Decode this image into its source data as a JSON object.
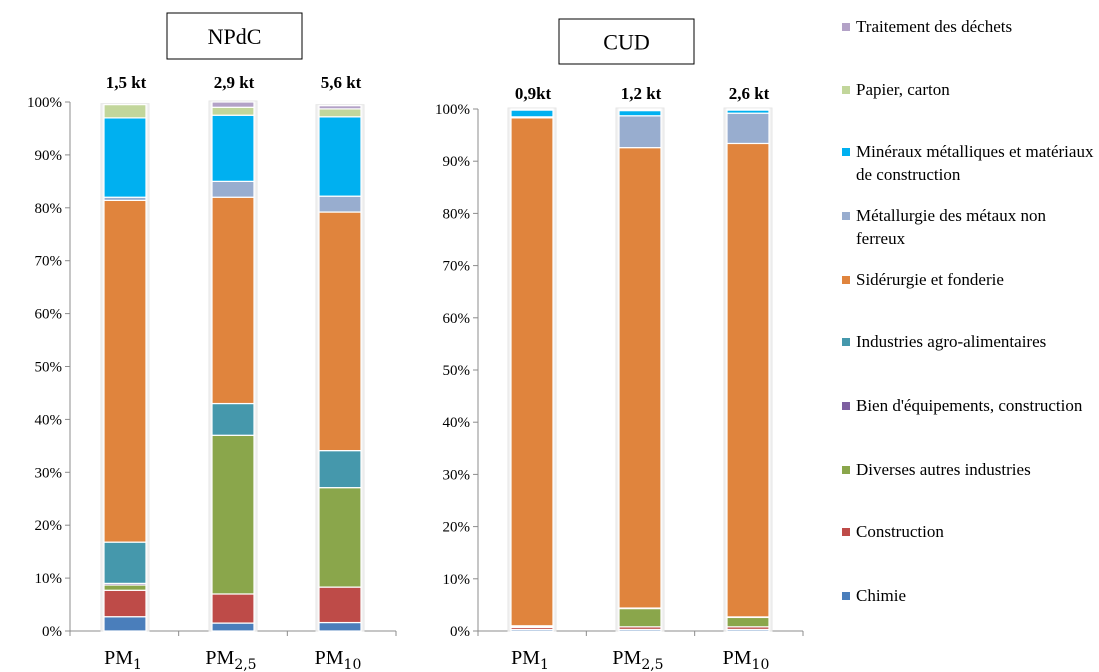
{
  "chart_data": [
    {
      "type": "bar",
      "stacked": "percent",
      "title": "NPdC",
      "categories": [
        "PM1",
        "PM2,5",
        "PM10"
      ],
      "category_labels": [
        {
          "base": "PM",
          "sub": "1"
        },
        {
          "base": "PM",
          "sub": "2,5"
        },
        {
          "base": "PM",
          "sub": "10"
        }
      ],
      "totals": [
        "1,5 kt",
        "2,9 kt",
        "5,6 kt"
      ],
      "ylim": [
        0,
        100
      ],
      "yticks": [
        "0%",
        "10%",
        "20%",
        "30%",
        "40%",
        "50%",
        "60%",
        "70%",
        "80%",
        "90%",
        "100%"
      ],
      "series": [
        {
          "name": "Chimie",
          "values": [
            2.7,
            1.5,
            1.6
          ]
        },
        {
          "name": "Construction",
          "values": [
            5.0,
            5.5,
            6.7
          ]
        },
        {
          "name": "Diverses autres industries",
          "values": [
            1.0,
            30.0,
            18.8
          ]
        },
        {
          "name": "Bien d'équipements, construction",
          "values": [
            0.3,
            0.0,
            0.0
          ]
        },
        {
          "name": "Industries agro-alimentaires",
          "values": [
            7.8,
            6.0,
            7.0
          ]
        },
        {
          "name": "Sidérurgie et  fonderie",
          "values": [
            64.6,
            39.0,
            45.1
          ]
        },
        {
          "name": "Métallurgie des métaux non ferreux",
          "values": [
            0.6,
            3.0,
            3.0
          ]
        },
        {
          "name": "Minéraux métalliques et matériaux de construction",
          "values": [
            15.0,
            12.5,
            15.0
          ]
        },
        {
          "name": "Papier, carton",
          "values": [
            2.5,
            1.5,
            1.5
          ]
        },
        {
          "name": "Traitement des déchets",
          "values": [
            0.0,
            1.0,
            0.6
          ]
        }
      ]
    },
    {
      "type": "bar",
      "stacked": "percent",
      "title": "CUD",
      "categories": [
        "PM1",
        "PM2,5",
        "PM10"
      ],
      "category_labels": [
        {
          "base": "PM",
          "sub": "1"
        },
        {
          "base": "PM",
          "sub": "2,5"
        },
        {
          "base": "PM",
          "sub": "10"
        }
      ],
      "totals": [
        "0,9kt",
        "1,2 kt",
        "2,6 kt"
      ],
      "ylim": [
        0,
        100
      ],
      "yticks": [
        "0%",
        "10%",
        "20%",
        "30%",
        "40%",
        "50%",
        "60%",
        "70%",
        "80%",
        "90%",
        "100%"
      ],
      "series": [
        {
          "name": "Chimie",
          "values": [
            0.3,
            0.3,
            0.3
          ]
        },
        {
          "name": "Construction",
          "values": [
            0.4,
            0.5,
            0.5
          ]
        },
        {
          "name": "Diverses autres industries",
          "values": [
            0.2,
            3.5,
            1.8
          ]
        },
        {
          "name": "Bien d'équipements, construction",
          "values": [
            0.0,
            0.0,
            0.0
          ]
        },
        {
          "name": "Industries agro-alimentaires",
          "values": [
            0.1,
            0.1,
            0.1
          ]
        },
        {
          "name": "Sidérurgie et  fonderie",
          "values": [
            97.3,
            88.2,
            90.7
          ]
        },
        {
          "name": "Métallurgie des métaux non ferreux",
          "values": [
            0.2,
            6.1,
            5.8
          ]
        },
        {
          "name": "Minéraux métalliques et matériaux de construction",
          "values": [
            1.3,
            1.0,
            0.6
          ]
        },
        {
          "name": "Papier, carton",
          "values": [
            0.1,
            0.2,
            0.1
          ]
        },
        {
          "name": "Traitement des déchets",
          "values": [
            0.1,
            0.1,
            0.1
          ]
        }
      ]
    }
  ],
  "colors": {
    "Chimie": "#4a7ebb",
    "Construction": "#be4b48",
    "Diverses autres industries": "#8aa64b",
    "Bien d'équipements, construction": "#7d5fa0",
    "Industries agro-alimentaires": "#4598ac",
    "Sidérurgie et  fonderie": "#e0843d",
    "Métallurgie des métaux non ferreux": "#98adcf",
    "Minéraux métalliques et matériaux de construction": "#00b0f0",
    "Papier, carton": "#c2d69b",
    "Traitement des déchets": "#b3a2c7"
  },
  "legend": [
    "Traitement des déchets",
    "Papier, carton",
    "Minéraux métalliques et matériaux de construction",
    "Métallurgie des métaux non ferreux",
    "Sidérurgie et  fonderie",
    "Industries agro-alimentaires",
    "Bien d'équipements, construction",
    "Diverses autres industries",
    "Construction",
    "Chimie"
  ],
  "legend_placement": "right"
}
